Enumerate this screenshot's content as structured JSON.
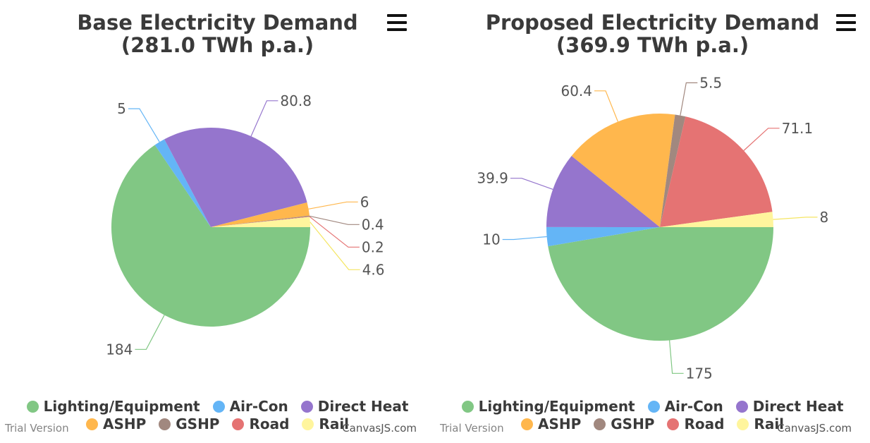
{
  "watermark": {
    "trial": "Trial Version",
    "credit": "CanvasJS.com"
  },
  "menu_icon": "hamburger-menu-icon",
  "chart_data": [
    {
      "type": "pie",
      "title": "Base Electricity Demand",
      "subtitle": "(281.0 TWh p.a.)",
      "start_angle": 0,
      "slices": [
        {
          "name": "Lighting/Equipment",
          "value": 184,
          "label": "184",
          "color": "#81c784"
        },
        {
          "name": "Air-Con",
          "value": 5,
          "label": "5",
          "color": "#64b5f6"
        },
        {
          "name": "Direct Heat",
          "value": 80.8,
          "label": "80.8",
          "color": "#9575cd"
        },
        {
          "name": "ASHP",
          "value": 6,
          "label": "6",
          "color": "#ffb74d"
        },
        {
          "name": "GSHP",
          "value": 0.4,
          "label": "0.4",
          "color": "#a1887f"
        },
        {
          "name": "Road",
          "value": 0.2,
          "label": "0.2",
          "color": "#e57373"
        },
        {
          "name": "Rail",
          "value": 4.6,
          "label": "4.6",
          "color": "#fff59d"
        }
      ],
      "legend": {
        "position": "bottom",
        "rows": [
          [
            "Lighting/Equipment",
            "Air-Con",
            "Direct Heat"
          ],
          [
            "ASHP",
            "GSHP",
            "Road",
            "Rail"
          ]
        ]
      }
    },
    {
      "type": "pie",
      "title": "Proposed Electricity Demand",
      "subtitle": "(369.9 TWh p.a.)",
      "start_angle": 0,
      "slices": [
        {
          "name": "Lighting/Equipment",
          "value": 175,
          "label": "175",
          "color": "#81c784"
        },
        {
          "name": "Air-Con",
          "value": 10,
          "label": "10",
          "color": "#64b5f6"
        },
        {
          "name": "Direct Heat",
          "value": 39.9,
          "label": "39.9",
          "color": "#9575cd"
        },
        {
          "name": "ASHP",
          "value": 60.4,
          "label": "60.4",
          "color": "#ffb74d"
        },
        {
          "name": "GSHP",
          "value": 5.5,
          "label": "5.5",
          "color": "#a1887f"
        },
        {
          "name": "Road",
          "value": 71.1,
          "label": "71.1",
          "color": "#e57373"
        },
        {
          "name": "Rail",
          "value": 8,
          "label": "8",
          "color": "#fff59d"
        }
      ],
      "legend": {
        "position": "bottom",
        "rows": [
          [
            "Lighting/Equipment",
            "Air-Con",
            "Direct Heat"
          ],
          [
            "ASHP",
            "GSHP",
            "Road",
            "Rail"
          ]
        ]
      }
    }
  ]
}
